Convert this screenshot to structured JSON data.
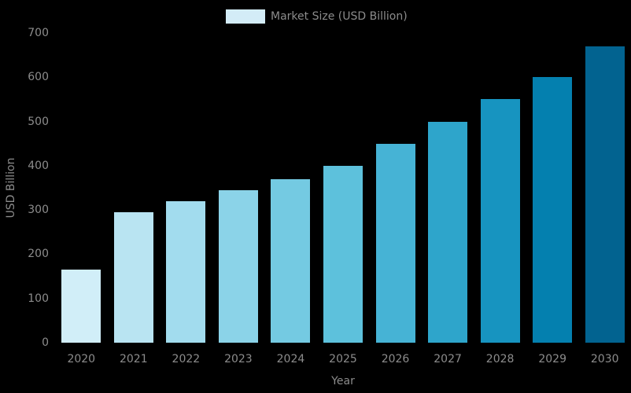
{
  "page": {
    "background_color": "#000000",
    "text_color": "#8c8c8c"
  },
  "legend": {
    "label": "Market Size (USD Billion)",
    "swatch_color": "#d3ecf7"
  },
  "chart_data": {
    "type": "bar",
    "title": "",
    "categories": [
      "2020",
      "2021",
      "2022",
      "2023",
      "2024",
      "2025",
      "2026",
      "2027",
      "2028",
      "2029",
      "2030"
    ],
    "values": [
      165,
      295,
      320,
      345,
      370,
      400,
      450,
      500,
      550,
      600,
      670
    ],
    "bar_colors": [
      "#d1eef8",
      "#b9e4f2",
      "#a2dcee",
      "#8bd3e8",
      "#74cae2",
      "#5dc1dc",
      "#46b3d5",
      "#2ea5cb",
      "#1794c0",
      "#0480af",
      "#026390"
    ],
    "xlabel": "Year",
    "ylabel": "USD Billion",
    "ylim": [
      0,
      700
    ],
    "yticks": [
      0,
      100,
      200,
      300,
      400,
      500,
      600,
      700
    ],
    "legend_entries": [
      "Market Size (USD Billion)"
    ],
    "legend_position": "top-center",
    "grid": false,
    "background": "#000000",
    "tick_color": "#8c8c8c"
  }
}
